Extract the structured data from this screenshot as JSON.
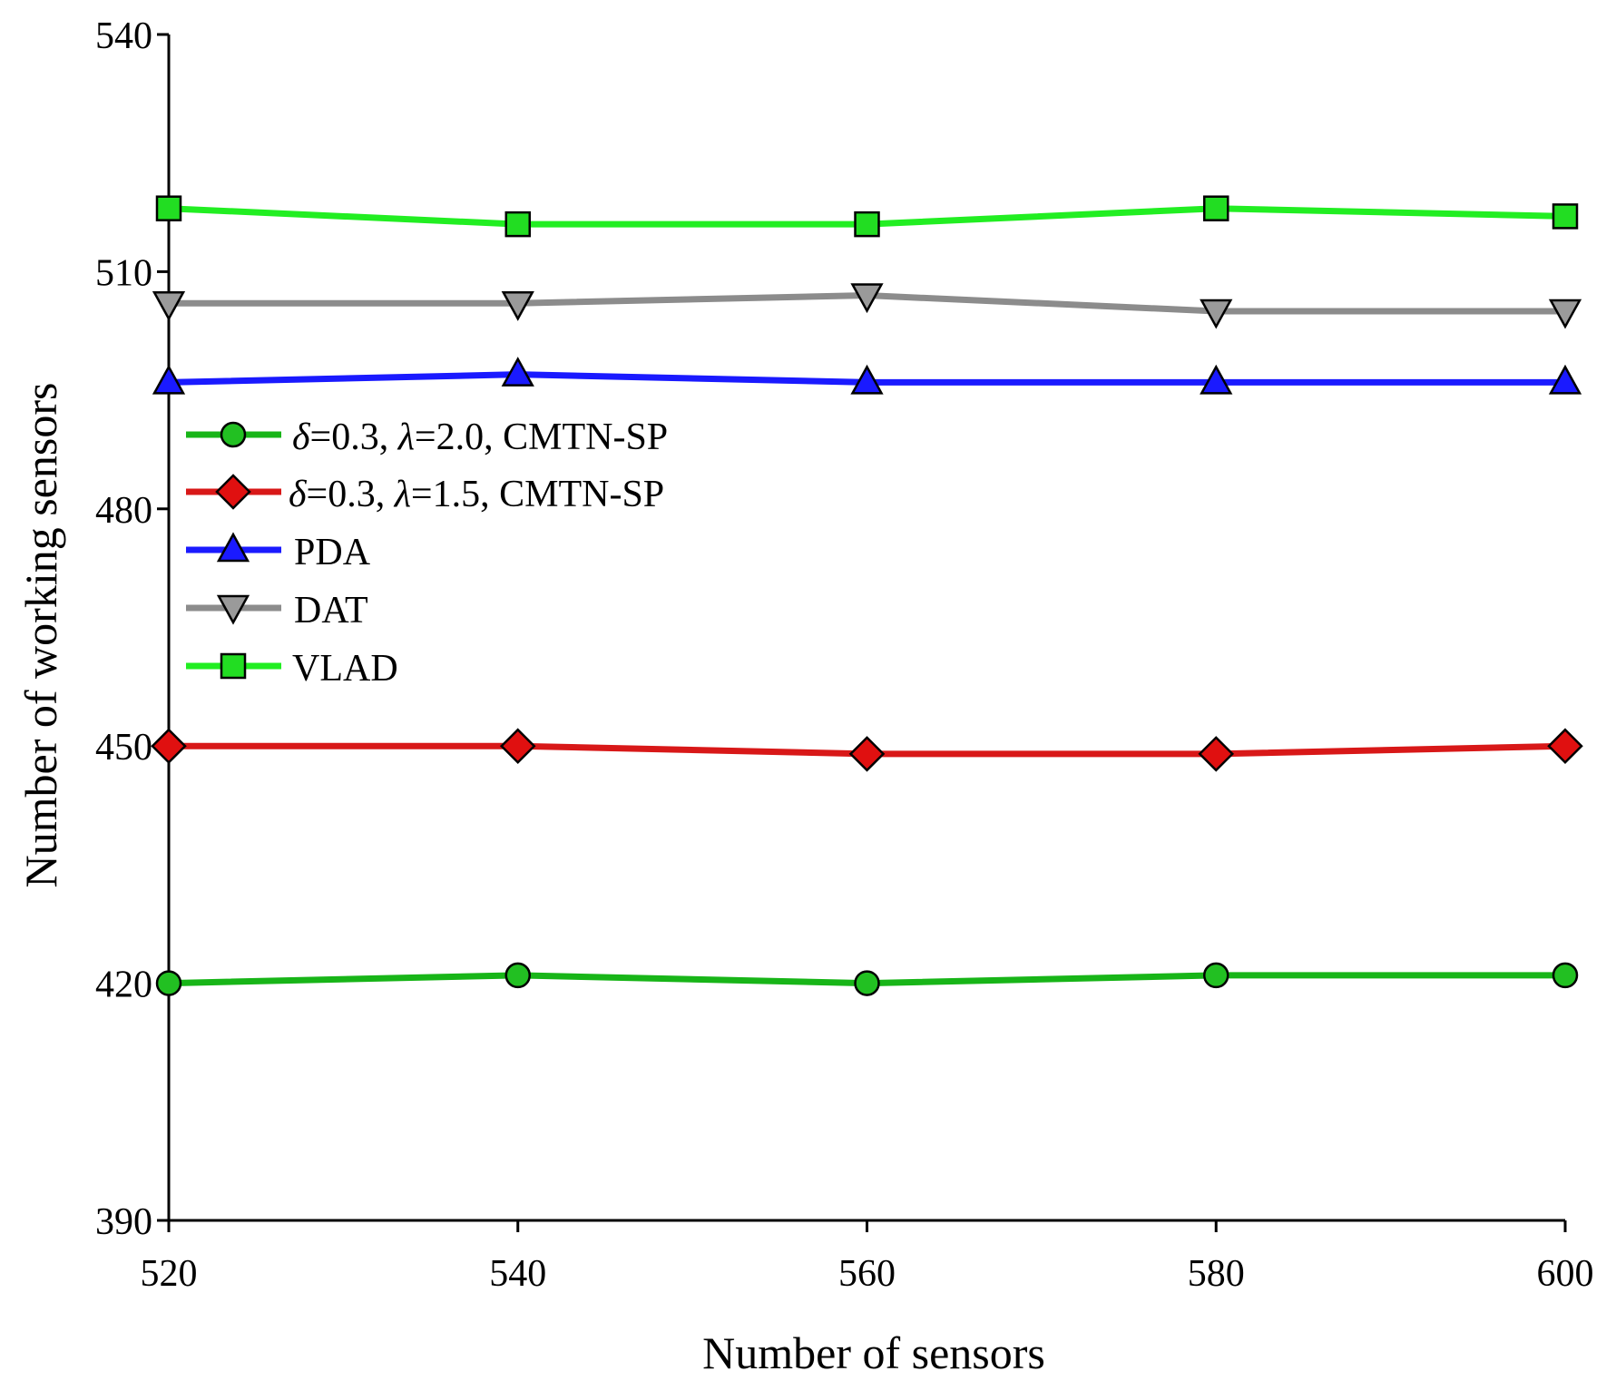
{
  "chart_data": {
    "type": "line",
    "xlabel": "Number of sensors",
    "ylabel": "Number of working sensors",
    "x": [
      520,
      540,
      560,
      580,
      600
    ],
    "xlim": [
      520,
      600
    ],
    "ylim": [
      390,
      540
    ],
    "xticks": [
      "520",
      "540",
      "560",
      "580",
      "600"
    ],
    "yticks": [
      "390",
      "420",
      "450",
      "480",
      "510",
      "540"
    ],
    "grid": false,
    "legend_position": "middle-left",
    "series": [
      {
        "name": "δ=0.3, λ=2.0, CMTN-SP",
        "name_parts": {
          "sym1": "δ",
          "rest1": "=0.3, ",
          "sym2": "λ",
          "rest2": "=2.0, CMTN-SP"
        },
        "marker": "circle",
        "line_color": "#18b518",
        "marker_color": "#22c022",
        "values": [
          420,
          421,
          420,
          421,
          421
        ]
      },
      {
        "name": "δ=0.3, λ=1.5, CMTN-SP",
        "name_parts": {
          "sym1": "δ",
          "rest1": "=0.3, ",
          "sym2": "λ",
          "rest2": "=1.5, CMTN-SP"
        },
        "marker": "diamond",
        "line_color": "#d81818",
        "marker_color": "#e01010",
        "values": [
          450,
          450,
          449,
          449,
          450
        ]
      },
      {
        "name": "PDA",
        "marker": "triangle-up",
        "line_color": "#1a1aff",
        "marker_color": "#1a1aff",
        "values": [
          496,
          497,
          496,
          496,
          496
        ]
      },
      {
        "name": "DAT",
        "marker": "triangle-down",
        "line_color": "#8c8c8c",
        "marker_color": "#9a9a9a",
        "values": [
          506,
          506,
          507,
          505,
          505
        ]
      },
      {
        "name": "VLAD",
        "marker": "square",
        "line_color": "#22ee22",
        "marker_color": "#22dd22",
        "values": [
          518,
          516,
          516,
          518,
          517
        ]
      }
    ]
  }
}
